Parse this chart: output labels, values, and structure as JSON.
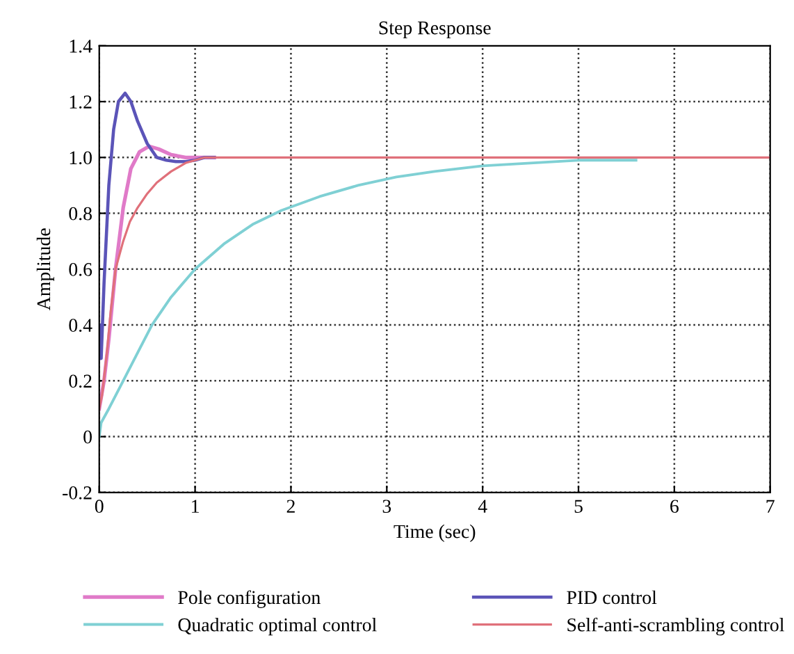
{
  "chart_data": {
    "type": "line",
    "title": "Step Response",
    "xlabel": "Time (sec)",
    "ylabel": "Amplitude",
    "xlim": [
      0,
      7
    ],
    "ylim": [
      -0.2,
      1.4
    ],
    "xticks": [
      0,
      1,
      2,
      3,
      4,
      5,
      6,
      7
    ],
    "yticks": [
      {
        "value": -0.2,
        "label": "-0.2"
      },
      0,
      0.2,
      0.4,
      0.6,
      0.8,
      {
        "value": 1,
        "label": "1.0"
      },
      1.2,
      1.4
    ],
    "grid": true,
    "legend": "bottom",
    "line_style": "solid",
    "marker": "none",
    "series": [
      {
        "name": "Pole configuration",
        "color": "#e07ac8",
        "x": [
          0,
          0.05,
          0.1,
          0.17,
          0.25,
          0.33,
          0.42,
          0.52,
          0.62,
          0.75,
          0.9,
          1.05,
          1.2
        ],
        "values": [
          0.1,
          0.2,
          0.35,
          0.6,
          0.82,
          0.96,
          1.02,
          1.04,
          1.03,
          1.01,
          1.0,
          1.0,
          1.0
        ]
      },
      {
        "name": "PID control",
        "color": "#5b54b8",
        "x": [
          0,
          0.01,
          0.02,
          0.05,
          0.1,
          0.15,
          0.2,
          0.27,
          0.33,
          0.4,
          0.5,
          0.6,
          0.7,
          0.8,
          0.9,
          1.0,
          1.1,
          1.2
        ],
        "values": [
          0.28,
          0.4,
          0.28,
          0.55,
          0.9,
          1.1,
          1.2,
          1.23,
          1.2,
          1.13,
          1.05,
          1.0,
          0.99,
          0.985,
          0.985,
          0.99,
          1.0,
          1.0
        ]
      },
      {
        "name": "Quadratic optimal control",
        "color": "#7fd0d4",
        "x": [
          0,
          0.02,
          0.1,
          0.25,
          0.4,
          0.55,
          0.75,
          1.0,
          1.3,
          1.6,
          1.9,
          2.3,
          2.7,
          3.1,
          3.5,
          4.0,
          4.5,
          5.0,
          5.6
        ],
        "values": [
          0.0,
          0.05,
          0.1,
          0.2,
          0.3,
          0.4,
          0.5,
          0.6,
          0.69,
          0.76,
          0.81,
          0.86,
          0.9,
          0.93,
          0.95,
          0.97,
          0.98,
          0.99,
          0.99
        ]
      },
      {
        "name": "Self-anti-scrambling control",
        "color": "#e0707a",
        "x": [
          0,
          0.03,
          0.08,
          0.12,
          0.17,
          0.25,
          0.32,
          0.4,
          0.5,
          0.6,
          0.75,
          0.9,
          1.1,
          1.3,
          7
        ],
        "values": [
          0.1,
          0.15,
          0.3,
          0.45,
          0.6,
          0.7,
          0.77,
          0.82,
          0.87,
          0.91,
          0.95,
          0.98,
          1.0,
          1.0,
          1.0
        ]
      }
    ]
  }
}
